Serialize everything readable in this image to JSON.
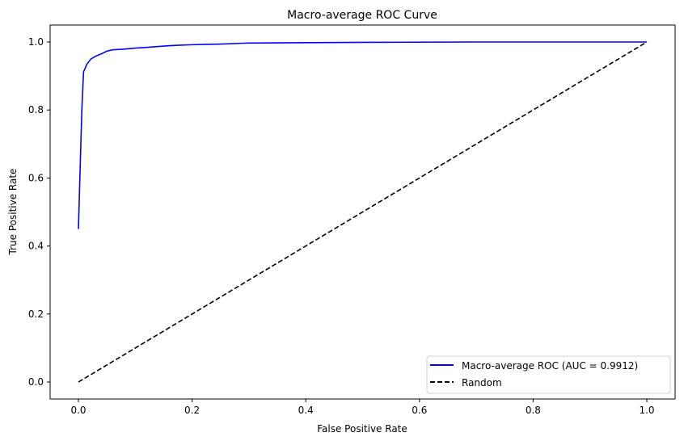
{
  "chart_data": {
    "type": "line",
    "title": "Macro-average ROC Curve",
    "xlabel": "False Positive Rate",
    "ylabel": "True Positive Rate",
    "xlim": [
      -0.05,
      1.05
    ],
    "ylim": [
      -0.05,
      1.05
    ],
    "xticks": [
      "0.0",
      "0.2",
      "0.4",
      "0.6",
      "0.8",
      "1.0"
    ],
    "yticks": [
      "0.0",
      "0.2",
      "0.4",
      "0.6",
      "0.8",
      "1.0"
    ],
    "grid": false,
    "legend_position": "lower-right",
    "series": [
      {
        "name": "Macro-average ROC (AUC = 0.9912)",
        "color": "#0000ff",
        "style": "solid",
        "x": [
          0,
          0.006,
          0.009,
          0.015,
          0.022,
          0.03,
          0.04,
          0.05,
          0.06,
          0.08,
          0.1,
          0.12,
          0.15,
          0.17,
          0.2,
          0.25,
          0.3,
          0.4,
          0.5,
          0.7,
          1.0
        ],
        "y": [
          0.45,
          0.8,
          0.912,
          0.935,
          0.95,
          0.958,
          0.965,
          0.973,
          0.977,
          0.979,
          0.982,
          0.984,
          0.988,
          0.99,
          0.992,
          0.994,
          0.997,
          0.998,
          0.999,
          1.0,
          1.0
        ]
      },
      {
        "name": "Random",
        "color": "#000000",
        "style": "dashed",
        "x": [
          0,
          1
        ],
        "y": [
          0,
          1
        ]
      }
    ]
  }
}
